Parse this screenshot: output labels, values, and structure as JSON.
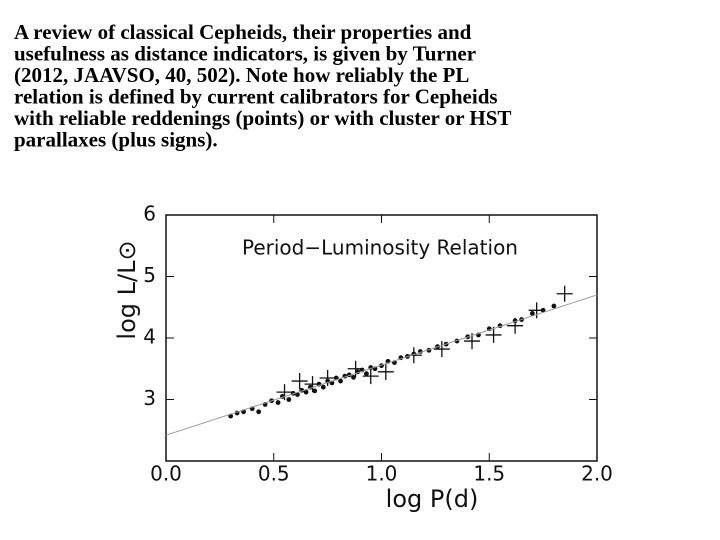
{
  "text_lines": [
    "A review of classical Cepheids, their properties and",
    "usefulness as distance indicators, is given by Turner",
    "(2012, JAAVSO, 40, 502). Note how reliably the PL",
    "relation is defined by current calibrators for Cepheids",
    "with reliable reddenings (points) or with cluster or HST",
    "parallaxes (plus signs)."
  ],
  "chart_data": {
    "type": "scatter",
    "annotation": "Period−Luminosity Relation",
    "x_label": "log P(d)",
    "y_label": "log L/L⊙",
    "xlim": [
      0,
      2
    ],
    "ylim": [
      2,
      6
    ],
    "xticks": [
      {
        "value": 0,
        "label": "0.0"
      },
      {
        "value": 0.5,
        "label": "0.5"
      },
      {
        "value": 1,
        "label": "1.0"
      },
      {
        "value": 1.5,
        "label": "1.5"
      },
      {
        "value": 2,
        "label": "2.0"
      }
    ],
    "yticks": [
      3,
      4,
      5,
      6
    ],
    "series": [
      {
        "marker": "dot",
        "color": "#111111",
        "x": [
          0.3,
          0.33,
          0.36,
          0.4,
          0.43,
          0.46,
          0.49,
          0.52,
          0.54,
          0.57,
          0.59,
          0.61,
          0.63,
          0.65,
          0.67,
          0.69,
          0.71,
          0.73,
          0.75,
          0.77,
          0.79,
          0.81,
          0.83,
          0.85,
          0.87,
          0.89,
          0.91,
          0.93,
          0.95,
          0.97,
          1.0,
          1.03,
          1.06,
          1.09,
          1.12,
          1.15,
          1.18,
          1.22,
          1.26,
          1.3,
          1.35,
          1.4,
          1.45,
          1.5,
          1.55,
          1.62,
          1.65,
          1.7,
          1.75,
          1.8
        ],
        "values": [
          2.73,
          2.78,
          2.8,
          2.85,
          2.8,
          2.92,
          2.98,
          2.95,
          3.05,
          3.0,
          3.1,
          3.08,
          3.15,
          3.12,
          3.2,
          3.14,
          3.25,
          3.2,
          3.3,
          3.27,
          3.35,
          3.3,
          3.38,
          3.4,
          3.36,
          3.45,
          3.48,
          3.42,
          3.52,
          3.5,
          3.55,
          3.62,
          3.6,
          3.68,
          3.7,
          3.74,
          3.78,
          3.8,
          3.86,
          3.9,
          3.95,
          4.02,
          4.05,
          4.15,
          4.2,
          4.28,
          4.3,
          4.4,
          4.45,
          4.52
        ]
      },
      {
        "marker": "plus",
        "color": "#111111",
        "x": [
          0.55,
          0.62,
          0.68,
          0.75,
          0.88,
          0.95,
          1.02,
          1.15,
          1.28,
          1.42,
          1.52,
          1.62,
          1.72,
          1.85
        ],
        "values": [
          3.12,
          3.3,
          3.25,
          3.35,
          3.5,
          3.38,
          3.45,
          3.72,
          3.82,
          3.95,
          4.05,
          4.2,
          4.45,
          4.72
        ]
      },
      {
        "marker": "line",
        "color": "#999999",
        "x": [
          0,
          2
        ],
        "values": [
          2.42,
          4.7
        ]
      }
    ]
  }
}
